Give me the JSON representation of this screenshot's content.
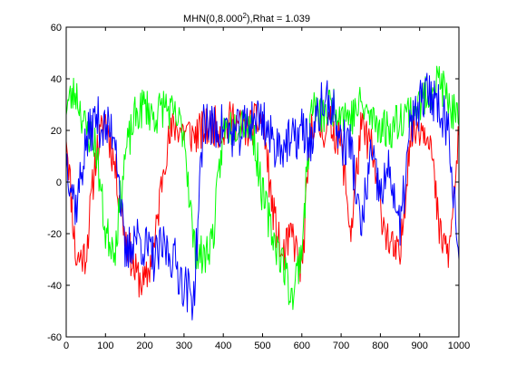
{
  "chart_data": {
    "type": "line",
    "title_prefix": "MHN(0,8.000",
    "title_exponent": "2",
    "title_suffix": "),Rhat = 1.039",
    "xlabel": "",
    "ylabel": "",
    "xlim": [
      0,
      1000
    ],
    "ylim": [
      -60,
      60
    ],
    "x_ticks": [
      0,
      100,
      200,
      300,
      400,
      500,
      600,
      700,
      800,
      900,
      1000
    ],
    "y_ticks": [
      -60,
      -40,
      -20,
      0,
      20,
      40,
      60
    ],
    "x_tick_labels": [
      "0",
      "100",
      "200",
      "300",
      "400",
      "500",
      "600",
      "700",
      "800",
      "900",
      "1000"
    ],
    "y_tick_labels": [
      "-60",
      "-40",
      "-20",
      "0",
      "20",
      "40",
      "60"
    ],
    "grid": false,
    "legend": false,
    "series": [
      {
        "name": "chain-red",
        "color": "#ff0000",
        "x": [
          0,
          25,
          50,
          75,
          100,
          125,
          150,
          175,
          200,
          225,
          250,
          275,
          300,
          325,
          350,
          375,
          400,
          425,
          450,
          475,
          500,
          525,
          550,
          575,
          600,
          625,
          650,
          675,
          700,
          725,
          750,
          775,
          800,
          825,
          850,
          875,
          900,
          925,
          950,
          975,
          1000
        ],
        "values": [
          20,
          -30,
          -28,
          10,
          25,
          5,
          -20,
          -35,
          -40,
          -25,
          10,
          22,
          20,
          18,
          20,
          22,
          20,
          25,
          20,
          22,
          25,
          -10,
          -30,
          -20,
          -35,
          25,
          20,
          22,
          15,
          -20,
          20,
          15,
          -10,
          -25,
          -30,
          18,
          22,
          20,
          -20,
          -28,
          18
        ],
        "noise": 5,
        "seed": 11
      },
      {
        "name": "chain-green",
        "color": "#00ff00",
        "x": [
          0,
          25,
          50,
          75,
          100,
          125,
          150,
          175,
          200,
          225,
          250,
          275,
          300,
          325,
          350,
          375,
          400,
          425,
          450,
          475,
          500,
          525,
          550,
          575,
          600,
          625,
          650,
          675,
          700,
          725,
          750,
          775,
          800,
          825,
          850,
          875,
          900,
          925,
          950,
          975,
          1000
        ],
        "values": [
          30,
          35,
          20,
          15,
          -20,
          -25,
          10,
          25,
          30,
          25,
          30,
          25,
          20,
          -25,
          -30,
          -20,
          20,
          22,
          25,
          20,
          -5,
          -20,
          -30,
          -45,
          -25,
          30,
          25,
          30,
          28,
          25,
          30,
          25,
          22,
          20,
          25,
          28,
          30,
          35,
          40,
          30,
          22
        ],
        "noise": 5,
        "seed": 23
      },
      {
        "name": "chain-blue",
        "color": "#0000ff",
        "x": [
          0,
          25,
          50,
          75,
          100,
          125,
          150,
          175,
          200,
          225,
          250,
          275,
          300,
          325,
          350,
          375,
          400,
          425,
          450,
          475,
          500,
          525,
          550,
          575,
          600,
          625,
          650,
          675,
          700,
          725,
          750,
          775,
          800,
          825,
          850,
          875,
          900,
          925,
          950,
          975,
          1000
        ],
        "values": [
          10,
          -10,
          15,
          25,
          20,
          20,
          -30,
          -20,
          -25,
          -30,
          -25,
          -30,
          -40,
          -45,
          25,
          20,
          22,
          18,
          20,
          25,
          25,
          15,
          15,
          15,
          20,
          15,
          30,
          30,
          15,
          15,
          -20,
          10,
          -5,
          5,
          -20,
          20,
          30,
          35,
          30,
          20,
          -30
        ],
        "noise": 6,
        "seed": 37
      }
    ]
  }
}
